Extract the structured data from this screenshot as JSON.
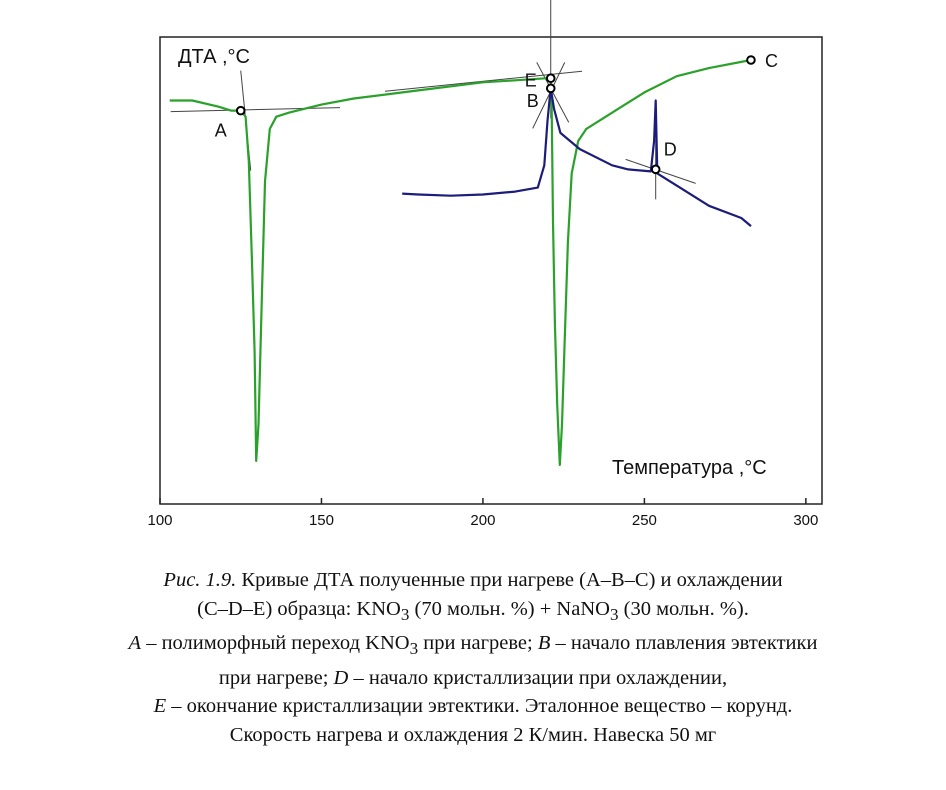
{
  "chart_data": {
    "type": "line",
    "ylabel": "ДТА ,°С",
    "xlabel": "Температура ,°С",
    "xlim": [
      100,
      305
    ],
    "x_ticks": [
      100,
      150,
      200,
      250,
      300
    ],
    "grid": false,
    "series": [
      {
        "color": "#2aa12a",
        "points": [
          [
            103,
            0.9
          ],
          [
            110,
            0.9
          ],
          [
            118,
            0.885
          ],
          [
            122,
            0.875
          ],
          [
            125,
            0.875
          ],
          [
            126.5,
            0.86
          ],
          [
            127.5,
            0.75
          ],
          [
            128.5,
            0.5
          ],
          [
            129.3,
            0.28
          ],
          [
            129.8,
            0.01
          ],
          [
            130.5,
            0.1
          ],
          [
            131.5,
            0.4
          ],
          [
            132.5,
            0.7
          ],
          [
            134,
            0.83
          ],
          [
            136,
            0.86
          ],
          [
            140,
            0.87
          ],
          [
            150,
            0.89
          ],
          [
            160,
            0.905
          ],
          [
            180,
            0.925
          ],
          [
            200,
            0.945
          ],
          [
            210,
            0.95
          ],
          [
            220,
            0.955
          ],
          [
            221,
            0.955
          ],
          [
            221.3,
            0.88
          ],
          [
            221.7,
            0.6
          ],
          [
            222.3,
            0.35
          ],
          [
            223,
            0.15
          ],
          [
            223.8,
            0.0
          ],
          [
            224.5,
            0.1
          ],
          [
            225.3,
            0.3
          ],
          [
            226.3,
            0.55
          ],
          [
            227.5,
            0.72
          ],
          [
            229.5,
            0.8
          ],
          [
            232,
            0.83
          ],
          [
            236,
            0.85
          ],
          [
            242,
            0.88
          ],
          [
            250,
            0.92
          ],
          [
            260,
            0.96
          ],
          [
            270,
            0.98
          ],
          [
            283,
            1.0
          ]
        ]
      },
      {
        "color": "#1c1c7a",
        "points": [
          [
            175,
            0.67
          ],
          [
            180,
            0.668
          ],
          [
            190,
            0.665
          ],
          [
            200,
            0.668
          ],
          [
            210,
            0.675
          ],
          [
            217,
            0.685
          ],
          [
            219,
            0.74
          ],
          [
            220,
            0.85
          ],
          [
            221,
            0.93
          ],
          [
            222,
            0.88
          ],
          [
            224,
            0.82
          ],
          [
            230,
            0.78
          ],
          [
            240,
            0.74
          ],
          [
            245,
            0.73
          ],
          [
            252,
            0.725
          ],
          [
            253,
            0.8
          ],
          [
            253.5,
            0.9
          ],
          [
            254,
            0.72
          ],
          [
            260,
            0.69
          ],
          [
            270,
            0.64
          ],
          [
            280,
            0.61
          ],
          [
            283,
            0.59
          ]
        ]
      }
    ],
    "points": [
      {
        "label": "A",
        "x": 125
      },
      {
        "label": "B",
        "x": 221
      },
      {
        "label": "C",
        "x": 283
      },
      {
        "label": "D",
        "x": 253.5
      },
      {
        "label": "E",
        "x": 221
      }
    ]
  },
  "caption": {
    "line1": {
      "fig": "Рис. 1.9.",
      "text": " Кривые ДТА полученные при нагреве (А–В–С) и охлаждении"
    },
    "line2": {
      "a": "(С–D–Е) образца: KNO",
      "b": " (70 мольн. %) + NaNO",
      "c": " (30 мольн. %).",
      "sub": "3"
    },
    "line3": {
      "a": "A",
      "b": " – полиморфный переход KNO",
      "c": " при нагреве; ",
      "d": "B",
      "e": " – начало плавления эвтектики",
      "sub": "3"
    },
    "line4": {
      "a": "при нагреве; ",
      "b": "D",
      "c": " – начало кристаллизации при охлаждении,"
    },
    "line5": {
      "a": "E",
      "b": " – окончание кристаллизации эвтектики. Эталонное вещество – корунд."
    },
    "line6": "Скорость нагрева и охлаждения 2 К/мин. Навеска 50 мг"
  }
}
